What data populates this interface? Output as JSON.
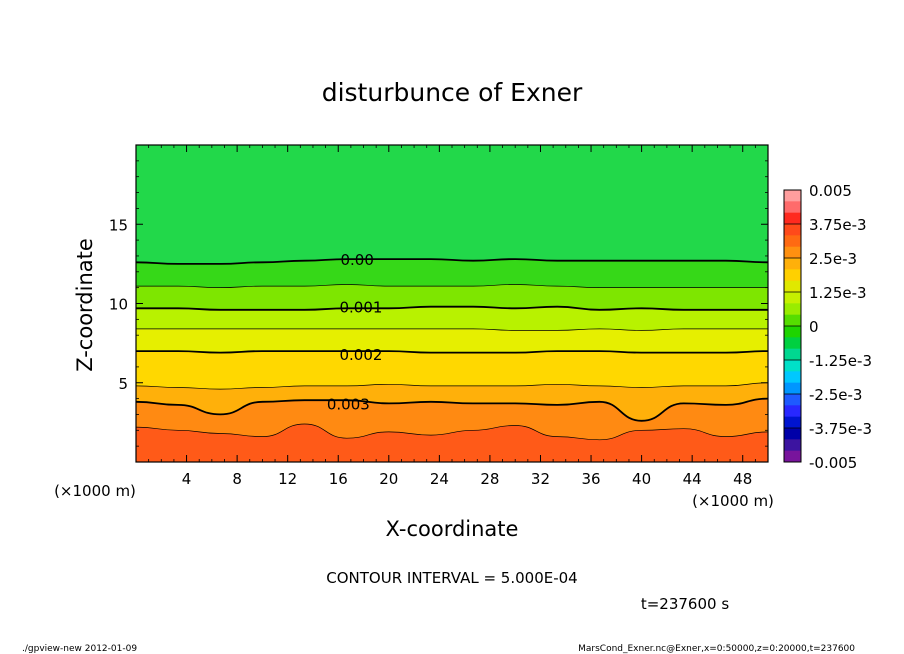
{
  "chart_data": {
    "type": "heatmap",
    "title": "disturbunce of Exner",
    "xlabel": "X-coordinate",
    "ylabel": "Z-coordinate",
    "x_unit": "(×1000 m)",
    "y_unit": "(×1000 m)",
    "xlim": [
      0,
      50
    ],
    "ylim": [
      0,
      20
    ],
    "x_ticks": [
      "4",
      "8",
      "12",
      "16",
      "20",
      "24",
      "28",
      "32",
      "36",
      "40",
      "44",
      "48"
    ],
    "y_ticks": [
      "5",
      "10",
      "15"
    ],
    "contour_interval_text": "CONTOUR INTERVAL = 5.000E-04",
    "time_text": "t=237600 s",
    "footer_left": "./gpview-new  2012-01-09",
    "footer_right": "MarsCond_Exner.nc@Exner,x=0:50000,z=0:20000,t=237600",
    "contour_labels": [
      {
        "text": "0.00",
        "value": 0.0,
        "x": 17.5,
        "z": 12.8
      },
      {
        "text": "0.001",
        "value": 0.001,
        "x": 17.8,
        "z": 9.8
      },
      {
        "text": "0.002",
        "value": 0.002,
        "x": 17.8,
        "z": 6.8
      },
      {
        "text": "0.003",
        "value": 0.003,
        "x": 16.8,
        "z": 3.7
      }
    ],
    "contour_levels": [
      {
        "value": 0.0035,
        "z": [
          2.2,
          2.0,
          1.8,
          1.6,
          2.4,
          1.5,
          1.9,
          1.7,
          2.0,
          2.3,
          1.6,
          1.4,
          2.0,
          2.1,
          1.6,
          1.9
        ]
      },
      {
        "value": 0.003,
        "z": [
          3.8,
          3.6,
          3.0,
          3.8,
          3.9,
          3.9,
          3.7,
          3.8,
          3.7,
          3.7,
          3.6,
          3.8,
          2.6,
          3.7,
          3.6,
          4.0
        ]
      },
      {
        "value": 0.0025,
        "z": [
          4.8,
          4.7,
          4.6,
          4.7,
          4.8,
          4.8,
          4.9,
          4.8,
          4.8,
          4.8,
          4.9,
          4.8,
          4.7,
          4.8,
          4.8,
          5.0
        ]
      },
      {
        "value": 0.002,
        "z": [
          7.0,
          7.0,
          6.9,
          7.0,
          7.0,
          7.0,
          7.0,
          6.9,
          6.9,
          6.9,
          7.0,
          7.0,
          6.9,
          6.9,
          6.9,
          7.0
        ]
      },
      {
        "value": 0.0015,
        "z": [
          8.4,
          8.4,
          8.4,
          8.4,
          8.4,
          8.4,
          8.4,
          8.4,
          8.4,
          8.3,
          8.3,
          8.4,
          8.3,
          8.4,
          8.4,
          8.4
        ]
      },
      {
        "value": 0.001,
        "z": [
          9.7,
          9.7,
          9.6,
          9.6,
          9.6,
          9.7,
          9.7,
          9.8,
          9.8,
          9.7,
          9.8,
          9.6,
          9.7,
          9.6,
          9.6,
          9.6
        ]
      },
      {
        "value": 0.0005,
        "z": [
          11.1,
          11.1,
          11.0,
          11.1,
          11.1,
          11.2,
          11.1,
          11.1,
          11.1,
          11.2,
          11.1,
          11.0,
          11.0,
          11.0,
          11.0,
          11.0
        ]
      },
      {
        "value": 0.0,
        "z": [
          12.6,
          12.5,
          12.5,
          12.6,
          12.7,
          12.8,
          12.8,
          12.8,
          12.7,
          12.8,
          12.7,
          12.7,
          12.7,
          12.7,
          12.7,
          12.6
        ]
      }
    ],
    "colorbar": {
      "labels": [
        "0.005",
        "3.75e-3",
        "2.5e-3",
        "1.25e-3",
        "0",
        "-1.25e-3",
        "-2.5e-3",
        "-3.75e-3",
        "-0.005"
      ],
      "colors": [
        "#ff9e9e",
        "#ff6b6b",
        "#ff2a1f",
        "#ff4a1a",
        "#ff6a12",
        "#ff9010",
        "#ffb00a",
        "#ffd000",
        "#e0e800",
        "#c6f000",
        "#99ec00",
        "#55dd00",
        "#1ed400",
        "#00d040",
        "#00d890",
        "#00e0c8",
        "#00c8ff",
        "#0096ff",
        "#1e5aff",
        "#2828ff",
        "#0014d0",
        "#0000a8",
        "#3c14a0",
        "#78149c"
      ]
    }
  },
  "colors": {
    "band_0": "#ff2a1f",
    "band_1": "#ff5a18",
    "band_2": "#ff8a12",
    "band_3": "#ffb00a",
    "band_4": "#ffd800",
    "band_5": "#e6ef00",
    "band_6": "#b8f200",
    "band_7": "#7ee600",
    "band_8": "#36d818",
    "band_9": "#22d84a"
  }
}
